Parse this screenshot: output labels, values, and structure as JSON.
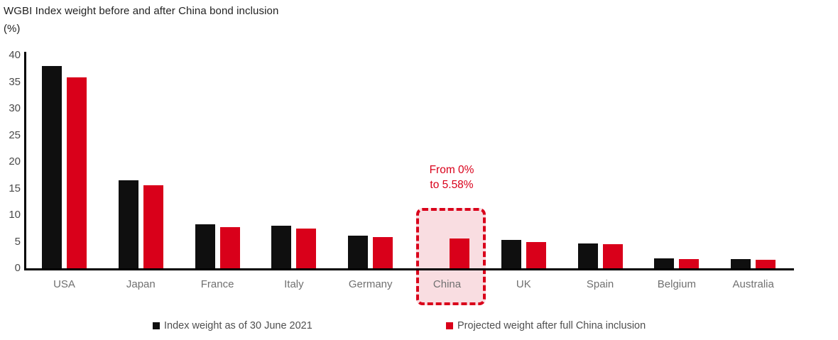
{
  "title": "WGBI Index weight before and after China bond inclusion",
  "unit_label": "(%)",
  "colors": {
    "black_series": "#0f0f0f",
    "red_series": "#d9001a",
    "highlight_fill": "#f9dde1",
    "highlight_border": "#d9001a",
    "annotation_text": "#d9001a",
    "axis": "#000000",
    "tick_label": "#4a4a4a",
    "category_label": "#707070",
    "legend_text": "#4f4f4f"
  },
  "chart_data": {
    "type": "bar",
    "categories": [
      "USA",
      "Japan",
      "France",
      "Italy",
      "Germany",
      "China",
      "UK",
      "Spain",
      "Belgium",
      "Australia"
    ],
    "series": [
      {
        "name": "Index weight as of 30 June 2021",
        "color_key": "black_series",
        "values": [
          38.0,
          16.5,
          8.3,
          8.0,
          6.2,
          0,
          5.3,
          4.7,
          1.9,
          1.7
        ]
      },
      {
        "name": "Projected weight after full China inclusion",
        "color_key": "red_series",
        "values": [
          35.9,
          15.6,
          7.8,
          7.5,
          5.9,
          5.58,
          5.0,
          4.5,
          1.8,
          1.6
        ]
      }
    ],
    "ylim": [
      0,
      40
    ],
    "yticks": [
      0,
      5,
      10,
      15,
      20,
      25,
      30,
      35,
      40
    ],
    "grid": false,
    "legend_position": "bottom",
    "highlighted_category": "China",
    "annotation": {
      "line1": "From 0%",
      "line2": "to 5.58%"
    }
  }
}
